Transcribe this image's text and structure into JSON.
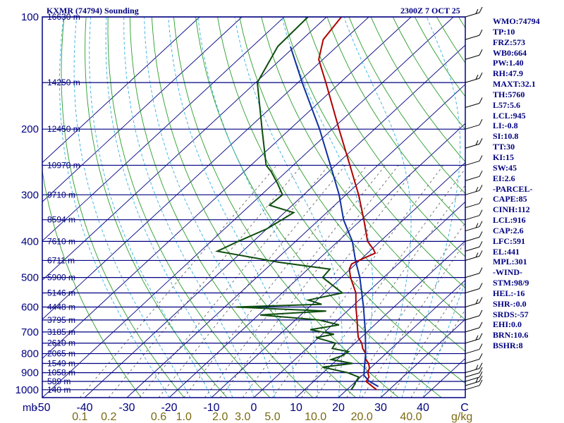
{
  "header": {
    "title": "KXMR (74794) Sounding",
    "time": "2300Z  7 OCT 25"
  },
  "indices": [
    "WMO:74794",
    "TP:10",
    "FRZ:573",
    "WB0:664",
    "PW:1.40",
    "RH:47.9",
    "MAXT:32.1",
    "TH:5760",
    "L57:5.6",
    "LCL:945",
    "LI:-0.8",
    "SI:10.8",
    "TT:30",
    "KI:15",
    "SW:45",
    "EI:2.6",
    "-PARCEL-",
    "CAPE:85",
    "CINH:112",
    "LCL:916",
    "CAP:2.6",
    "LFC:591",
    "EL:441",
    "MPL:301",
    "-WIND-",
    "STM:98/9",
    "HEL:-16",
    "SHR-:0.0",
    "SRDS:-57",
    "EHI:0.0",
    "BRN:10.6",
    "BSHR:8"
  ],
  "colors": {
    "frame": "#000080",
    "isotherm": "#000080",
    "dry_adiabat": "#2a9d2a",
    "moist_adiabat": "#33b0e0",
    "mixing_ratio": "#555555",
    "temperature": "#b00000",
    "dewpoint": "#0d4d0d",
    "parcel": "#1030a0",
    "wind_barb": "#000000"
  },
  "chart_data": {
    "type": "line",
    "title": "KXMR (74794) Sounding",
    "x_unit_label": "mb",
    "mixing_ratio_unit": "g/kg",
    "pressure_ticks": [
      100,
      200,
      300,
      400,
      500,
      600,
      700,
      800,
      900,
      1000
    ],
    "temperature_ticks": [
      -50,
      -40,
      -30,
      -20,
      -10,
      0,
      10,
      20,
      30,
      40
    ],
    "temperature_tick_labels": [
      "-50",
      "-40",
      "-30",
      "-20",
      "-10",
      "0",
      "10",
      "20",
      "30",
      "40"
    ],
    "corner_label": "C",
    "mixing_ratio_labels": [
      {
        "text": "0.1",
        "value": 0.1
      },
      {
        "text": "0.2",
        "value": 0.2
      },
      {
        "text": "0.6",
        "value": 0.6
      },
      {
        "text": "1.0",
        "value": 1.0
      },
      {
        "text": "2.0",
        "value": 2.0
      },
      {
        "text": "3.0",
        "value": 3.0
      },
      {
        "text": "5.0",
        "value": 5.0
      },
      {
        "text": "10.0",
        "value": 10.0
      },
      {
        "text": "20.0",
        "value": 20.0
      },
      {
        "text": "40.0",
        "value": 40.0
      }
    ],
    "height_levels": [
      {
        "label": "16630 m",
        "p": 100
      },
      {
        "label": "14250 m",
        "p": 150
      },
      {
        "label": "12450 m",
        "p": 200
      },
      {
        "label": "10970 m",
        "p": 250
      },
      {
        "label": "9710 m",
        "p": 300
      },
      {
        "label": "8594 m",
        "p": 350
      },
      {
        "label": "7610 m",
        "p": 400
      },
      {
        "label": "6711 m",
        "p": 450
      },
      {
        "label": "5900 m",
        "p": 500
      },
      {
        "label": "5146 m",
        "p": 550
      },
      {
        "label": "4448 m",
        "p": 600
      },
      {
        "label": "3795 m",
        "p": 650
      },
      {
        "label": "3185 m",
        "p": 700
      },
      {
        "label": "2610 m",
        "p": 750
      },
      {
        "label": "2065 m",
        "p": 800
      },
      {
        "label": "1549 m",
        "p": 850
      },
      {
        "label": "1058 m",
        "p": 900
      },
      {
        "label": "589 m",
        "p": 950
      },
      {
        "label": "140 m",
        "p": 1000
      }
    ],
    "series": [
      {
        "key": "temperature",
        "points": [
          {
            "p": 1000,
            "t": 27.0
          },
          {
            "p": 950,
            "t": 22.4
          },
          {
            "p": 925,
            "t": 22.0
          },
          {
            "p": 900,
            "t": 20.6
          },
          {
            "p": 875,
            "t": 19.8
          },
          {
            "p": 850,
            "t": 18.4
          },
          {
            "p": 825,
            "t": 16.4
          },
          {
            "p": 800,
            "t": 15.2
          },
          {
            "p": 775,
            "t": 13.2
          },
          {
            "p": 750,
            "t": 11.6
          },
          {
            "p": 725,
            "t": 9.4
          },
          {
            "p": 700,
            "t": 7.8
          },
          {
            "p": 650,
            "t": 4.6
          },
          {
            "p": 600,
            "t": 1.0
          },
          {
            "p": 550,
            "t": -2.6
          },
          {
            "p": 500,
            "t": -7.8
          },
          {
            "p": 475,
            "t": -10.2
          },
          {
            "p": 460,
            "t": -11.0
          },
          {
            "p": 450,
            "t": -10.2
          },
          {
            "p": 430,
            "t": -8.2
          },
          {
            "p": 420,
            "t": -9.6
          },
          {
            "p": 400,
            "t": -13.0
          },
          {
            "p": 350,
            "t": -19.4
          },
          {
            "p": 300,
            "t": -27.0
          },
          {
            "p": 250,
            "t": -36.6
          },
          {
            "p": 200,
            "t": -48.4
          },
          {
            "p": 150,
            "t": -63.4
          },
          {
            "p": 130,
            "t": -71.0
          },
          {
            "p": 115,
            "t": -75.0
          },
          {
            "p": 100,
            "t": -76.5
          }
        ]
      },
      {
        "key": "dewpoint",
        "points": [
          {
            "p": 1000,
            "t": 21.0
          },
          {
            "p": 975,
            "t": 20.6
          },
          {
            "p": 950,
            "t": 20.0
          },
          {
            "p": 925,
            "t": 19.6
          },
          {
            "p": 900,
            "t": 15.8
          },
          {
            "p": 870,
            "t": 8.5
          },
          {
            "p": 850,
            "t": 14.6
          },
          {
            "p": 830,
            "t": 8.6
          },
          {
            "p": 810,
            "t": 10.2
          },
          {
            "p": 790,
            "t": 10.6
          },
          {
            "p": 775,
            "t": 6.0
          },
          {
            "p": 750,
            "t": 5.4
          },
          {
            "p": 725,
            "t": -0.6
          },
          {
            "p": 710,
            "t": 2.8
          },
          {
            "p": 690,
            "t": -4.0
          },
          {
            "p": 670,
            "t": 1.6
          },
          {
            "p": 650,
            "t": -4.4
          },
          {
            "p": 630,
            "t": -19.6
          },
          {
            "p": 615,
            "t": -5.0
          },
          {
            "p": 600,
            "t": -27.4
          },
          {
            "p": 590,
            "t": -7.8
          },
          {
            "p": 575,
            "t": -12.0
          },
          {
            "p": 550,
            "t": -5.8
          },
          {
            "p": 500,
            "t": -14.4
          },
          {
            "p": 475,
            "t": -14.8
          },
          {
            "p": 455,
            "t": -28.6
          },
          {
            "p": 425,
            "t": -46.0
          },
          {
            "p": 400,
            "t": -43.6
          },
          {
            "p": 370,
            "t": -40.0
          },
          {
            "p": 335,
            "t": -37.8
          },
          {
            "p": 320,
            "t": -45.4
          },
          {
            "p": 300,
            "t": -45.0
          },
          {
            "p": 280,
            "t": -49.0
          },
          {
            "p": 260,
            "t": -53.6
          },
          {
            "p": 250,
            "t": -56.4
          },
          {
            "p": 200,
            "t": -66.6
          },
          {
            "p": 150,
            "t": -79.6
          },
          {
            "p": 120,
            "t": -84.0
          },
          {
            "p": 100,
            "t": -84.4
          }
        ]
      },
      {
        "key": "parcel",
        "points": [
          {
            "p": 980,
            "t": 26.6
          },
          {
            "p": 950,
            "t": 23.2
          },
          {
            "p": 916,
            "t": 20.4
          },
          {
            "p": 875,
            "t": 18.6
          },
          {
            "p": 800,
            "t": 15.2
          },
          {
            "p": 700,
            "t": 9.6
          },
          {
            "p": 600,
            "t": 2.8
          },
          {
            "p": 500,
            "t": -5.6
          },
          {
            "p": 450,
            "t": -11.0
          },
          {
            "p": 400,
            "t": -16.6
          },
          {
            "p": 350,
            "t": -24.2
          },
          {
            "p": 300,
            "t": -31.6
          },
          {
            "p": 250,
            "t": -41.2
          },
          {
            "p": 200,
            "t": -53.0
          },
          {
            "p": 150,
            "t": -69.0
          },
          {
            "p": 120,
            "t": -81.0
          }
        ]
      }
    ],
    "isotherm_range": [
      -110,
      50,
      10
    ],
    "dry_adiabat_thetas": [
      -30,
      -20,
      -10,
      0,
      10,
      20,
      30,
      40,
      50,
      60,
      70,
      80,
      90,
      100,
      110,
      120,
      130,
      140,
      150,
      160,
      170,
      180,
      190,
      200
    ],
    "moist_adiabat_thetaw": [
      -20,
      -15,
      -10,
      -5,
      0,
      5,
      10,
      15,
      20,
      25,
      30,
      35,
      40
    ],
    "mixing_ratio_lines": [
      0.1,
      0.2,
      0.4,
      0.6,
      1.0,
      1.5,
      2.0,
      3.0,
      5.0,
      8.0,
      10.0,
      16.0,
      20.0,
      30.0,
      40.0
    ],
    "wind_barbs_levels": [
      100,
      115,
      130,
      150,
      175,
      200,
      225,
      250,
      275,
      300,
      325,
      350,
      375,
      400,
      425,
      450,
      500,
      550,
      600,
      650,
      700,
      750,
      800,
      850,
      900,
      925,
      950,
      975,
      1000
    ]
  }
}
